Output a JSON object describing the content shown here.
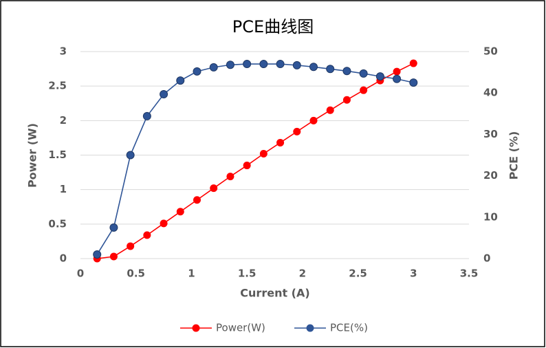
{
  "chart_data": {
    "type": "line",
    "title": "PCE曲线图",
    "x_label": "Current (A)",
    "y_label": "Power (W)",
    "y2_label": "PCE (%)",
    "x": [
      0.15,
      0.3,
      0.45,
      0.6,
      0.75,
      0.9,
      1.05,
      1.2,
      1.35,
      1.5,
      1.65,
      1.8,
      1.95,
      2.1,
      2.25,
      2.4,
      2.55,
      2.7,
      2.85,
      3.0
    ],
    "series": [
      {
        "name": "Power(W)",
        "color": "#ff0000",
        "values": [
          0.0,
          0.03,
          0.18,
          0.34,
          0.51,
          0.68,
          0.85,
          1.02,
          1.19,
          1.35,
          1.52,
          1.68,
          1.84,
          2.0,
          2.15,
          2.3,
          2.44,
          2.58,
          2.71,
          2.83
        ]
      },
      {
        "name": "PCE(%)",
        "color": "#2f5597",
        "axis": "y2",
        "values": [
          1,
          7.5,
          25,
          34.4,
          39.7,
          43,
          45.2,
          46.2,
          46.8,
          47,
          47,
          47,
          46.7,
          46.3,
          45.8,
          45.3,
          44.7,
          44,
          43.4,
          42.5
        ]
      }
    ],
    "xlim": [
      0,
      3.5
    ],
    "xticks": [
      0,
      0.5,
      1,
      1.5,
      2,
      2.5,
      3,
      3.5
    ],
    "ylim": [
      0,
      3
    ],
    "yticks": [
      0,
      0.5,
      1,
      1.5,
      2,
      2.5,
      3
    ],
    "y2lim": [
      0,
      50
    ],
    "y2ticks": [
      0,
      10,
      20,
      30,
      40,
      50
    ],
    "grid": true,
    "legend": "bottom"
  }
}
